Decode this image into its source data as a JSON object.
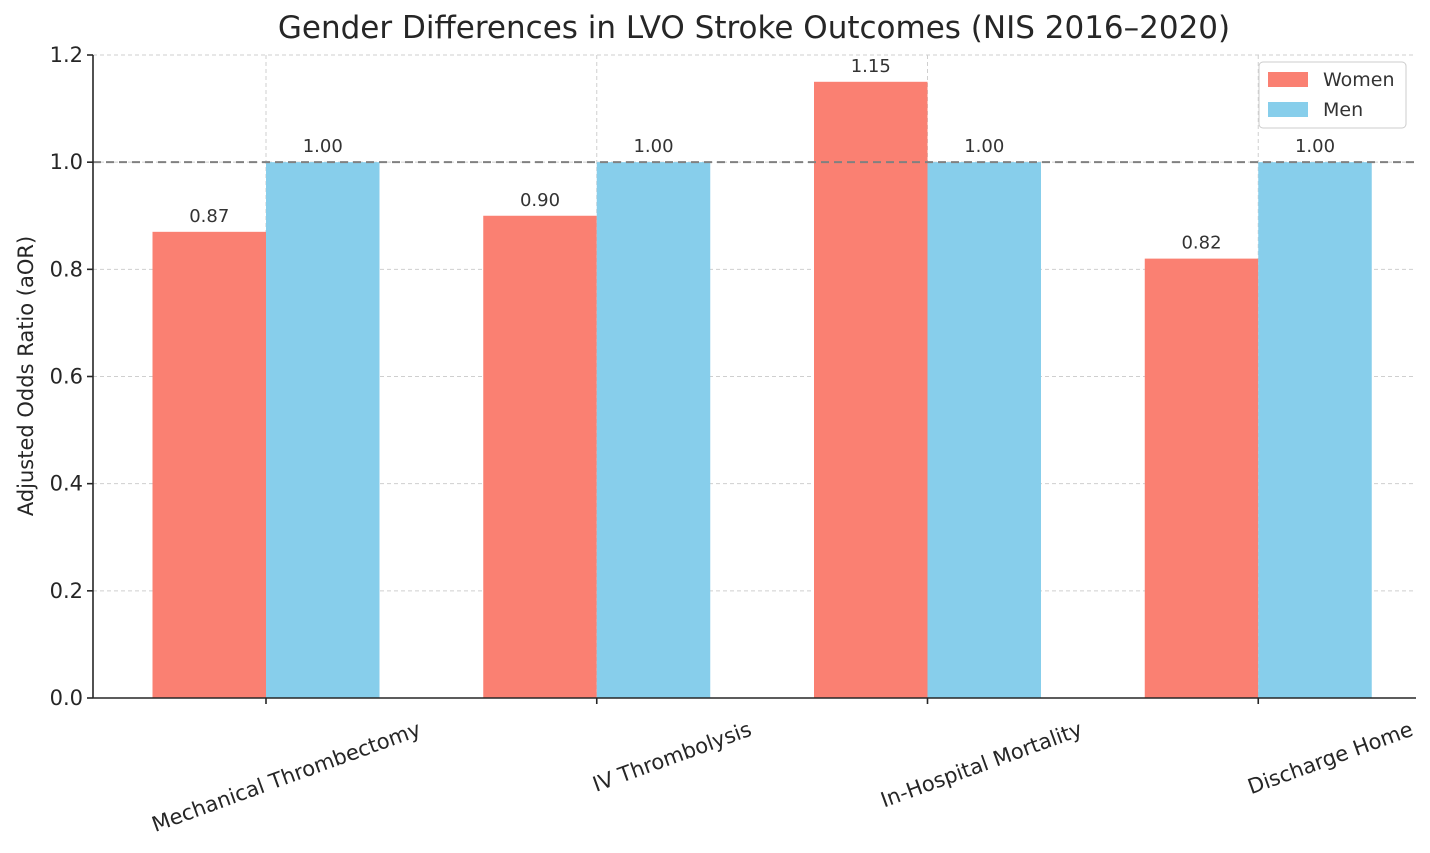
{
  "chart_data": {
    "type": "bar",
    "title": "Gender Differences in LVO Stroke Outcomes (NIS 2016–2020)",
    "xlabel": "",
    "ylabel": "Adjusted Odds Ratio (aOR)",
    "categories": [
      "Mechanical Thrombectomy",
      "IV Thrombolysis",
      "In-Hospital Mortality",
      "Discharge Home"
    ],
    "series": [
      {
        "name": "Women",
        "values": [
          0.87,
          0.9,
          1.15,
          0.82
        ],
        "color": "#FA8072",
        "labels": [
          "0.87",
          "0.90",
          "1.15",
          "0.82"
        ]
      },
      {
        "name": "Men",
        "values": [
          1.0,
          1.0,
          1.0,
          1.0
        ],
        "color": "#87CEEB",
        "labels": [
          "1.00",
          "1.00",
          "1.00",
          "1.00"
        ]
      }
    ],
    "ylim": [
      0,
      1.2
    ],
    "yticks": [
      0.0,
      0.2,
      0.4,
      0.6,
      0.8,
      1.0,
      1.2
    ],
    "ytick_labels": [
      "0.0",
      "0.2",
      "0.4",
      "0.6",
      "0.8",
      "1.0",
      "1.2"
    ],
    "reference_line": 1.0,
    "grid": true,
    "legend": {
      "position": "top-right",
      "entries": [
        "Women",
        "Men"
      ]
    }
  }
}
